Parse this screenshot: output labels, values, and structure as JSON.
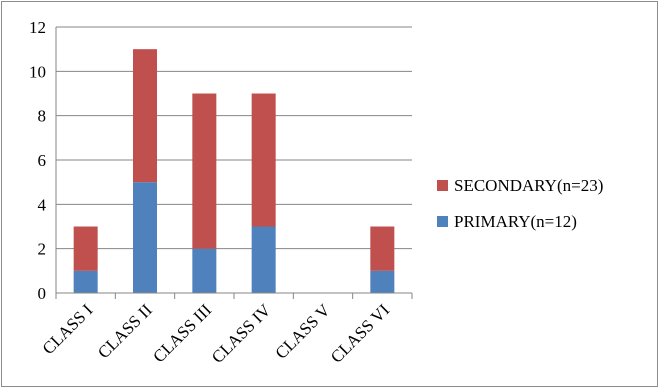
{
  "chart_data": {
    "type": "bar",
    "stacked": true,
    "categories": [
      "CLASS I",
      "CLASS II",
      "CLASS III",
      "CLASS IV",
      "CLASS V",
      "CLASS VI"
    ],
    "series": [
      {
        "name": "PRIMARY(n=12)",
        "values": [
          1,
          5,
          2,
          3,
          0,
          1
        ],
        "color": "#4f81bd"
      },
      {
        "name": "SECONDARY(n=23)",
        "values": [
          2,
          6,
          7,
          6,
          0,
          2
        ],
        "color": "#c0504d"
      }
    ],
    "yticks": [
      "0",
      "2",
      "4",
      "6",
      "8",
      "10",
      "12"
    ],
    "ylim": [
      0,
      12
    ],
    "grid": true,
    "legend_position": "right",
    "legend_order": [
      "SECONDARY(n=23)",
      "PRIMARY(n=12)"
    ],
    "title": "",
    "xlabel": "",
    "ylabel": ""
  }
}
